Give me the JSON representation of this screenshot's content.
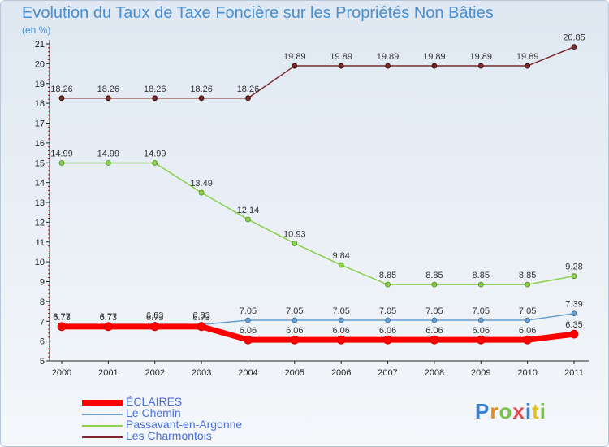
{
  "title": "Evolution du Taux de Taxe Foncière sur les Propriétés Non Bâties",
  "unit_label": "(en %)",
  "logo_text": "Proxiti",
  "chart_data": {
    "type": "line",
    "x": [
      2000,
      2001,
      2002,
      2003,
      2004,
      2005,
      2006,
      2007,
      2008,
      2009,
      2010,
      2011
    ],
    "ylim": [
      5,
      21
    ],
    "yticks": [
      5,
      6,
      7,
      8,
      9,
      10,
      11,
      12,
      13,
      14,
      15,
      16,
      17,
      18,
      19,
      20,
      21
    ],
    "grid": false,
    "legend_position": "bottom-left",
    "series": [
      {
        "name": "ÉCLAIRES",
        "color": "#ff0000",
        "values": [
          6.73,
          6.73,
          6.73,
          6.73,
          6.06,
          6.06,
          6.06,
          6.06,
          6.06,
          6.06,
          6.06,
          6.35
        ],
        "labels": [
          "6.73",
          "6.73",
          "6.73",
          "6.73",
          "6.06",
          "6.06",
          "6.06",
          "6.06",
          "6.06",
          "6.06",
          "6.06",
          "6.35"
        ]
      },
      {
        "name": "Le Chemin",
        "color": "#6a9fd0",
        "values": [
          6.77,
          6.77,
          6.83,
          6.83,
          7.05,
          7.05,
          7.05,
          7.05,
          7.05,
          7.05,
          7.05,
          7.39
        ],
        "labels": [
          "6.77",
          "6.77",
          "6.83",
          "6.83",
          "7.05",
          "7.05",
          "7.05",
          "7.05",
          "7.05",
          "7.05",
          "7.05",
          "7.39"
        ]
      },
      {
        "name": "Passavant-en-Argonne",
        "color": "#8fd04a",
        "values": [
          14.99,
          14.99,
          14.99,
          13.49,
          12.14,
          10.93,
          9.84,
          8.85,
          8.85,
          8.85,
          8.85,
          9.28
        ],
        "labels": [
          "14.99",
          "14.99",
          "14.99",
          "13.49",
          "12.14",
          "10.93",
          "9.84",
          "8.85",
          "8.85",
          "8.85",
          "8.85",
          "9.28"
        ]
      },
      {
        "name": "Les Charmontois",
        "color": "#7a2a2a",
        "values": [
          18.26,
          18.26,
          18.26,
          18.26,
          18.26,
          19.89,
          19.89,
          19.89,
          19.89,
          19.89,
          19.89,
          20.85
        ],
        "labels": [
          "18.26",
          "18.26",
          "18.26",
          "18.26",
          "18.26",
          "19.89",
          "19.89",
          "19.89",
          "19.89",
          "19.89",
          "19.89",
          "20.85"
        ]
      }
    ]
  },
  "legend": [
    {
      "label": "ÉCLAIRES",
      "color": "#ff0000"
    },
    {
      "label": "Le Chemin",
      "color": "#6a9fd0"
    },
    {
      "label": "Passavant-en-Argonne",
      "color": "#8fd04a"
    },
    {
      "label": "Les Charmontois",
      "color": "#7a2a2a"
    }
  ]
}
